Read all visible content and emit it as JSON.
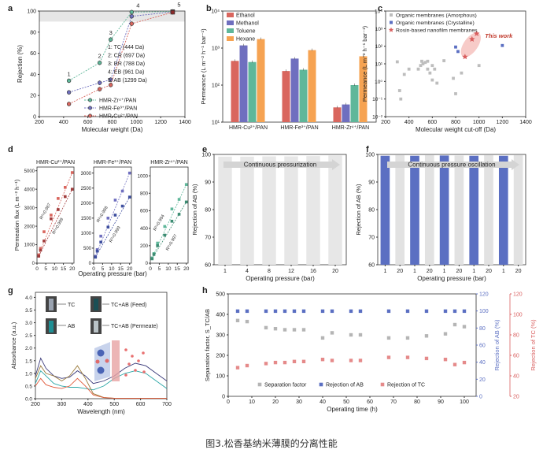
{
  "caption": "图3.松香基纳米薄膜的分离性能",
  "colors": {
    "cu": "#d9665e",
    "fe": "#6f6fbf",
    "zr": "#5fb79a",
    "hex": "#f6a352",
    "grey": "#bdbdbd",
    "blue": "#5b6fc2",
    "red": "#d95f5f"
  },
  "chart_data": [
    {
      "panel": "a",
      "type": "line",
      "xlabel": "Molecular weight (Da)",
      "ylabel": "Rejection (%)",
      "xlim": [
        200,
        1400
      ],
      "ylim": [
        0,
        100
      ],
      "xticks": [
        "200",
        "400",
        "600",
        "800",
        "1000",
        "1200",
        "1400"
      ],
      "yticks": [
        "0",
        "20",
        "40",
        "60",
        "80",
        "100"
      ],
      "x": [
        444,
        697,
        788,
        961,
        1299
      ],
      "point_labels": [
        "1",
        "2",
        "3",
        "4",
        "5"
      ],
      "solutes": [
        "1: TC (444 Da)",
        "2: CR (697 Da)",
        "3: RR (788 Da)",
        "4: EB (961 Da)",
        "5: AB (1299 Da)"
      ],
      "series": [
        {
          "name": "HMR-Zr⁴⁺/PAN",
          "values": [
            34,
            51,
            73,
            99,
            99.5
          ]
        },
        {
          "name": "HMR-Fe³⁺/PAN",
          "values": [
            23,
            32,
            35,
            95,
            99.2
          ]
        },
        {
          "name": "HMR-Cu²⁺/PAN",
          "values": [
            12,
            26,
            30,
            88,
            98.8
          ]
        }
      ]
    },
    {
      "panel": "b",
      "type": "bar",
      "ylabel": "Permeance (L m⁻² h⁻¹ bar⁻¹)",
      "yscale": "log",
      "ylim": [
        10,
        10000
      ],
      "yticks": [
        "10¹",
        "10²",
        "10³",
        "10⁴"
      ],
      "categories": [
        "HMR-Cu²⁺/PAN",
        "HMR-Fe³⁺/PAN",
        "HMR-Zr⁴⁺/PAN"
      ],
      "series": [
        {
          "name": "Ethanol",
          "values": [
            450,
            240,
            25
          ]
        },
        {
          "name": "Methanol",
          "values": [
            1180,
            520,
            30
          ]
        },
        {
          "name": "Toluene",
          "values": [
            420,
            260,
            100
          ]
        },
        {
          "name": "Hexane",
          "values": [
            1750,
            880,
            600
          ]
        }
      ]
    },
    {
      "panel": "c",
      "type": "scatter",
      "xlabel": "Molecular weight cut-off (Da)",
      "ylabel": "Permeance (L m⁻² h⁻¹ bar⁻¹)",
      "xlim": [
        200,
        1400
      ],
      "ylim": [
        0.01,
        10000
      ],
      "yscale": "log",
      "xticks": [
        "200",
        "400",
        "600",
        "800",
        "1000",
        "1200",
        "1400"
      ],
      "yticks": [
        "10⁻²",
        "10⁻¹",
        "10⁰",
        "10¹",
        "10²",
        "10³",
        "10⁴"
      ],
      "annotation": "This work",
      "series": [
        {
          "name": "Organic membranes (Amorphous)",
          "points": [
            [
              300,
              13
            ],
            [
              320,
              0.3
            ],
            [
              330,
              0.1
            ],
            [
              360,
              2.5
            ],
            [
              400,
              5
            ],
            [
              480,
              5
            ],
            [
              500,
              8
            ],
            [
              510,
              14
            ],
            [
              520,
              10
            ],
            [
              540,
              12
            ],
            [
              560,
              5
            ],
            [
              560,
              14
            ],
            [
              580,
              3
            ],
            [
              600,
              8
            ],
            [
              600,
              1.2
            ],
            [
              620,
              5
            ],
            [
              640,
              0.8
            ],
            [
              700,
              15
            ],
            [
              780,
              1.5
            ],
            [
              800,
              0.2
            ],
            [
              850,
              3
            ],
            [
              1000,
              8
            ]
          ]
        },
        {
          "name": "Organic membranes (Crystalline)",
          "points": [
            [
              800,
              90
            ],
            [
              820,
              50
            ],
            [
              1200,
              110
            ]
          ]
        },
        {
          "name": "Rosin-based nanofilm membranes",
          "points": [
            [
              880,
              25
            ],
            [
              940,
              250
            ],
            [
              980,
              520
            ]
          ]
        }
      ]
    },
    {
      "panel": "d",
      "type": "scatter",
      "xlabel": "Operating pressure (bar)",
      "ylabel": "Permeation flux (L m⁻² h⁻¹)",
      "subplots": [
        {
          "title": "HMR-Cu²⁺/PAN",
          "xlim": [
            0,
            21
          ],
          "ylim": [
            0,
            5200
          ],
          "xticks": [
            "0",
            "5",
            "10",
            "15",
            "20"
          ],
          "yticks": [
            "0",
            "1000",
            "2000",
            "3000",
            "4000",
            "5000"
          ],
          "series": [
            {
              "name": "Ethanol",
              "x": [
                1,
                2,
                4,
                8,
                12,
                16,
                20
              ],
              "values": [
                450,
                800,
                1700,
                2600,
                3500,
                4100,
                4900
              ],
              "r2": "R²=0.987"
            },
            {
              "name": "Methanol",
              "x": [
                1,
                2,
                4,
                8,
                12,
                16,
                20
              ],
              "values": [
                380,
                700,
                1200,
                2400,
                2900,
                3600,
                4000
              ],
              "r2": "R²=0.999"
            }
          ]
        },
        {
          "title": "HMR-Fe³⁺/PAN",
          "xlim": [
            0,
            21
          ],
          "ylim": [
            0,
            3200
          ],
          "xticks": [
            "0",
            "5",
            "10",
            "15",
            "20"
          ],
          "yticks": [
            "0",
            "500",
            "1000",
            "1500",
            "2000",
            "2500",
            "3000"
          ],
          "series": [
            {
              "name": "Ethanol",
              "x": [
                1,
                2,
                4,
                8,
                12,
                16,
                20
              ],
              "values": [
                230,
                450,
                900,
                1500,
                2100,
                2400,
                3000
              ],
              "r2": "R²=0.988"
            },
            {
              "name": "Methanol",
              "x": [
                1,
                2,
                4,
                8,
                12,
                16,
                20
              ],
              "values": [
                200,
                400,
                700,
                1200,
                1600,
                1900,
                2200
              ],
              "r2": "R²=0.999"
            }
          ]
        },
        {
          "title": "HMR-Zr⁴⁺/PAN",
          "xlim": [
            0,
            21
          ],
          "ylim": [
            0,
            1100
          ],
          "xticks": [
            "0",
            "5",
            "10",
            "15",
            "20"
          ],
          "yticks": [
            "0",
            "200",
            "400",
            "600",
            "800",
            "1000"
          ],
          "series": [
            {
              "name": "Ethanol",
              "x": [
                1,
                2,
                4,
                8,
                12,
                16,
                20
              ],
              "values": [
                60,
                110,
                230,
                420,
                620,
                730,
                900
              ],
              "r2": "R²=0.994"
            },
            {
              "name": "Methanol",
              "x": [
                1,
                2,
                4,
                8,
                12,
                16,
                20
              ],
              "values": [
                50,
                100,
                200,
                320,
                480,
                560,
                700
              ],
              "r2": "R²=0.997"
            }
          ]
        }
      ]
    },
    {
      "panel": "e",
      "type": "bar",
      "title": "Continuous pressurization",
      "xlabel": "Operating pressure (bar)",
      "ylabel": "Rejection of AB (%)",
      "ylim": [
        60,
        100
      ],
      "yticks": [
        "60",
        "70",
        "80",
        "90",
        "100"
      ],
      "categories": [
        "1",
        "4",
        "8",
        "12",
        "16",
        "20"
      ],
      "values": [
        99.2,
        99.2,
        99.3,
        99.3,
        99.4,
        99.6
      ]
    },
    {
      "panel": "f",
      "type": "bar",
      "title": "Continuous pressure oscillation",
      "xlabel": "Operating pressure (bar)",
      "ylabel": "Rejection of AB (%)",
      "ylim": [
        60,
        100
      ],
      "yticks": [
        "60",
        "70",
        "80",
        "90",
        "100"
      ],
      "categories": [
        "1",
        "20",
        "1",
        "20",
        "1",
        "20",
        "1",
        "20",
        "1",
        "20"
      ],
      "values": [
        99.5,
        99.7,
        99.5,
        99.7,
        99.6,
        99.6,
        99.5,
        99.7,
        99.5,
        99.7
      ]
    },
    {
      "panel": "g",
      "type": "line",
      "xlabel": "Wavelength (nm)",
      "ylabel": "Absorbance (a.u.)",
      "xlim": [
        200,
        700
      ],
      "ylim": [
        0,
        4.2
      ],
      "xticks": [
        "200",
        "300",
        "400",
        "500",
        "600",
        "700"
      ],
      "yticks": [
        "0.0",
        "0.5",
        "1.0",
        "1.5",
        "2.0",
        "2.5",
        "3.0",
        "3.5",
        "4.0"
      ],
      "vial_labels": [
        "TC",
        "AB",
        "TC+AB (Feed)",
        "TC+AB (Permeate)"
      ],
      "series": [
        {
          "name": "TC+AB (Feed)",
          "x": [
            200,
            220,
            240,
            270,
            300,
            330,
            360,
            390,
            420,
            460,
            500,
            540,
            580,
            620,
            660,
            700
          ],
          "values": [
            0.9,
            1.6,
            1.2,
            0.9,
            0.8,
            0.85,
            1.1,
            0.9,
            0.6,
            0.7,
            0.9,
            1.2,
            1.4,
            1.3,
            1.0,
            0.7
          ]
        },
        {
          "name": "AB",
          "x": [
            200,
            220,
            240,
            270,
            300,
            330,
            360,
            390,
            420,
            460,
            500,
            540,
            580,
            620,
            660,
            700
          ],
          "values": [
            0.6,
            1.1,
            0.9,
            0.6,
            0.5,
            0.45,
            0.45,
            0.4,
            0.35,
            0.5,
            0.8,
            1.0,
            1.1,
            1.0,
            0.7,
            0.4
          ]
        },
        {
          "name": "TC",
          "x": [
            200,
            220,
            240,
            270,
            300,
            330,
            360,
            390,
            420,
            460,
            500,
            540,
            580,
            620,
            660,
            700
          ],
          "values": [
            0.8,
            1.3,
            1.0,
            0.9,
            0.7,
            0.9,
            1.3,
            0.8,
            0.2,
            0.05,
            0.02,
            0.02,
            0.02,
            0.02,
            0.02,
            0.02
          ]
        },
        {
          "name": "TC+AB (Permeate)",
          "x": [
            200,
            220,
            240,
            270,
            300,
            330,
            360,
            390,
            420,
            460,
            500,
            540,
            580,
            620,
            660,
            700
          ],
          "values": [
            0.5,
            0.8,
            0.55,
            0.45,
            0.4,
            0.5,
            0.8,
            0.5,
            0.15,
            0.04,
            0.02,
            0.02,
            0.02,
            0.02,
            0.02,
            0.02
          ]
        }
      ]
    },
    {
      "panel": "h",
      "type": "scatter",
      "xlabel": "Operating time (h)",
      "ylabel": "Separation factor, S_TC/AB",
      "ylabel_right1": "Rejection of AB (%)",
      "ylabel_right2": "Rejection of TC (%)",
      "xlim": [
        0,
        105
      ],
      "ylim": [
        0,
        500
      ],
      "ylim_right1": [
        0,
        120
      ],
      "ylim_right2": [
        20,
        120
      ],
      "xticks": [
        "0",
        "10",
        "20",
        "30",
        "40",
        "50",
        "60",
        "70",
        "80",
        "90",
        "100"
      ],
      "yticks": [
        "0",
        "100",
        "200",
        "300",
        "400",
        "500"
      ],
      "yticks_right1": [
        "0",
        "20",
        "40",
        "60",
        "80",
        "100",
        "120"
      ],
      "yticks_right2": [
        "20",
        "40",
        "60",
        "80",
        "100",
        "120"
      ],
      "legend": [
        "Separation factor",
        "Rejection of AB",
        "Rejection of TC"
      ],
      "x": [
        4,
        8,
        16,
        20,
        24,
        28,
        32,
        40,
        44,
        52,
        56,
        68,
        76,
        84,
        92,
        96,
        100
      ],
      "series": [
        {
          "name": "Separation factor",
          "values": [
            370,
            365,
            335,
            330,
            325,
            325,
            325,
            285,
            310,
            300,
            300,
            285,
            285,
            295,
            305,
            350,
            340
          ]
        },
        {
          "name": "Rejection of AB",
          "values": [
            99.8,
            99.8,
            99.8,
            99.8,
            99.8,
            99.8,
            99.8,
            99.8,
            99.8,
            99.8,
            99.8,
            99.8,
            99.8,
            99.8,
            99.8,
            99.8,
            99.8
          ]
        },
        {
          "name": "Rejection of TC",
          "values": [
            48,
            50,
            52,
            53,
            53,
            54,
            54,
            56,
            55,
            55,
            55,
            58,
            58,
            57,
            56,
            51,
            53
          ]
        }
      ]
    }
  ]
}
